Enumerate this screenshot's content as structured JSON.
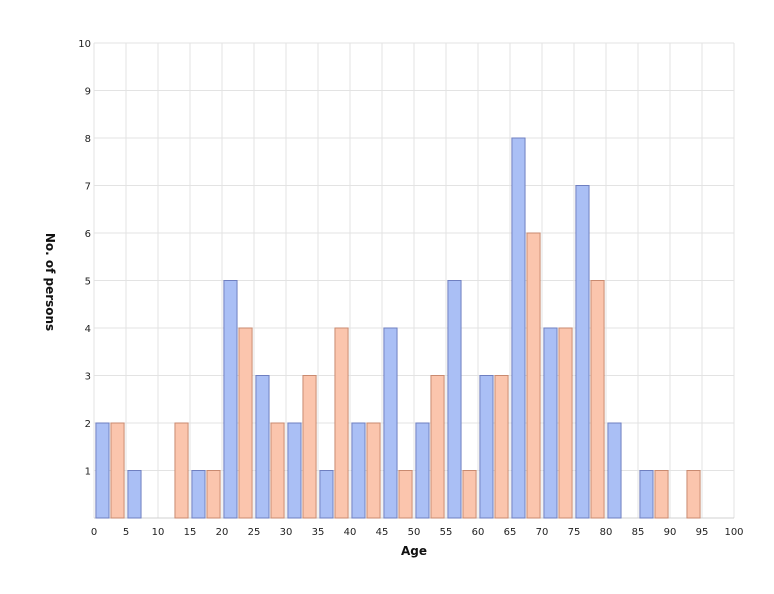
{
  "chart_data": {
    "type": "bar",
    "xlabel": "Age",
    "ylabel": "No. of persons",
    "xlim": [
      0,
      100
    ],
    "ylim": [
      0,
      10
    ],
    "x_ticks": [
      "0",
      "5",
      "10",
      "15",
      "20",
      "25",
      "30",
      "35",
      "40",
      "45",
      "50",
      "55",
      "60",
      "65",
      "70",
      "75",
      "80",
      "85",
      "90",
      "95",
      "100"
    ],
    "y_ticks": [
      "1",
      "2",
      "3",
      "4",
      "5",
      "6",
      "7",
      "8",
      "9",
      "10"
    ],
    "grid": true,
    "legend": "none",
    "series": [
      {
        "color": "#aabff5",
        "stroke": "#6f7fc0",
        "bins": [
          {
            "x0": 0,
            "x1": 5,
            "value": 2
          },
          {
            "x0": 5,
            "x1": 10,
            "value": 1
          },
          {
            "x0": 10,
            "x1": 15,
            "value": 0
          },
          {
            "x0": 15,
            "x1": 20,
            "value": 1
          },
          {
            "x0": 20,
            "x1": 25,
            "value": 5
          },
          {
            "x0": 25,
            "x1": 30,
            "value": 3
          },
          {
            "x0": 30,
            "x1": 35,
            "value": 2
          },
          {
            "x0": 35,
            "x1": 40,
            "value": 1
          },
          {
            "x0": 40,
            "x1": 45,
            "value": 2
          },
          {
            "x0": 45,
            "x1": 50,
            "value": 4
          },
          {
            "x0": 50,
            "x1": 55,
            "value": 2
          },
          {
            "x0": 55,
            "x1": 60,
            "value": 5
          },
          {
            "x0": 60,
            "x1": 65,
            "value": 3
          },
          {
            "x0": 65,
            "x1": 70,
            "value": 8
          },
          {
            "x0": 70,
            "x1": 75,
            "value": 4
          },
          {
            "x0": 75,
            "x1": 80,
            "value": 7
          },
          {
            "x0": 80,
            "x1": 85,
            "value": 2
          },
          {
            "x0": 85,
            "x1": 90,
            "value": 1
          },
          {
            "x0": 90,
            "x1": 95,
            "value": 0
          },
          {
            "x0": 95,
            "x1": 100,
            "value": 0
          }
        ]
      },
      {
        "color": "#fbc5ad",
        "stroke": "#c98a70",
        "bins": [
          {
            "x0": 0,
            "x1": 5,
            "value": 2
          },
          {
            "x0": 5,
            "x1": 10,
            "value": 0
          },
          {
            "x0": 10,
            "x1": 15,
            "value": 2
          },
          {
            "x0": 15,
            "x1": 20,
            "value": 1
          },
          {
            "x0": 20,
            "x1": 25,
            "value": 4
          },
          {
            "x0": 25,
            "x1": 30,
            "value": 2
          },
          {
            "x0": 30,
            "x1": 35,
            "value": 3
          },
          {
            "x0": 35,
            "x1": 40,
            "value": 4
          },
          {
            "x0": 40,
            "x1": 45,
            "value": 2
          },
          {
            "x0": 45,
            "x1": 50,
            "value": 1
          },
          {
            "x0": 50,
            "x1": 55,
            "value": 3
          },
          {
            "x0": 55,
            "x1": 60,
            "value": 1
          },
          {
            "x0": 60,
            "x1": 65,
            "value": 3
          },
          {
            "x0": 65,
            "x1": 70,
            "value": 6
          },
          {
            "x0": 70,
            "x1": 75,
            "value": 4
          },
          {
            "x0": 75,
            "x1": 80,
            "value": 5
          },
          {
            "x0": 80,
            "x1": 85,
            "value": 0
          },
          {
            "x0": 85,
            "x1": 90,
            "value": 1
          },
          {
            "x0": 90,
            "x1": 95,
            "value": 1
          },
          {
            "x0": 95,
            "x1": 100,
            "value": 0
          }
        ]
      }
    ]
  }
}
